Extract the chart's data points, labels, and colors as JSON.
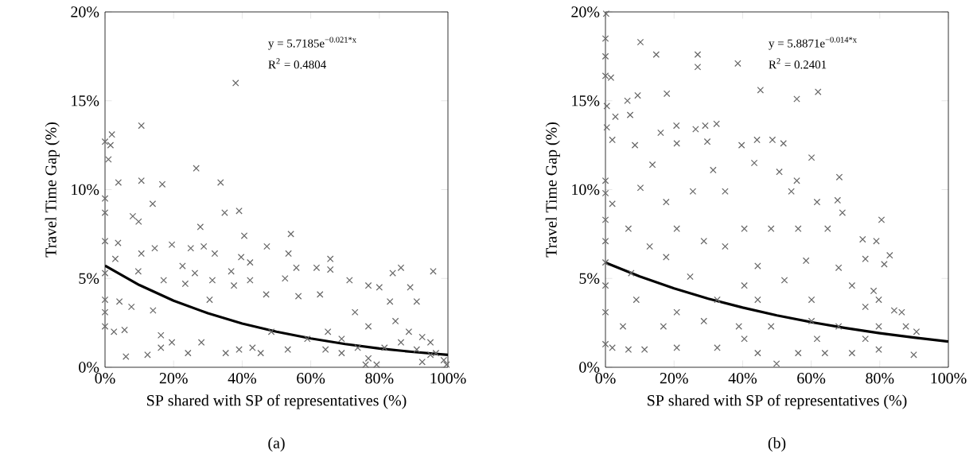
{
  "chart_data": [
    {
      "type": "scatter",
      "subtitle": "(a)",
      "xlabel": "SP shared with SP of representatives (%)",
      "ylabel": "Travel Time Gap (%)",
      "xlim": [
        0,
        100
      ],
      "ylim": [
        0,
        20
      ],
      "xticks": [
        {
          "value": 0,
          "label": "0%"
        },
        {
          "value": 20,
          "label": "20%"
        },
        {
          "value": 40,
          "label": "40%"
        },
        {
          "value": 60,
          "label": "60%"
        },
        {
          "value": 80,
          "label": "80%"
        },
        {
          "value": 100,
          "label": "100%"
        }
      ],
      "yticks": [
        {
          "value": 0,
          "label": "0%"
        },
        {
          "value": 5,
          "label": "5%"
        },
        {
          "value": 10,
          "label": "10%"
        },
        {
          "value": 15,
          "label": "15%"
        },
        {
          "value": 20,
          "label": "20%"
        }
      ],
      "annotations": [
        "y = 5.7185e$^{−0.021*x}$",
        "R$^{2}$ = 0.4804"
      ],
      "series": [
        {
          "type": "scatter",
          "color": "#666666",
          "marker": "cross",
          "x": [
            38.1,
            10.6,
            2.0,
            1.6,
            0,
            1.0,
            26.6,
            10.6,
            33.7,
            3.9,
            16.7,
            13.9,
            0,
            0,
            34.9,
            39.1,
            8.1,
            9.8,
            27.8,
            54.2,
            40.6,
            3.8,
            0,
            47.2,
            14.5,
            19.5,
            25.0,
            28.8,
            53.5,
            65.7,
            10.6,
            39.7,
            32.0,
            55.8,
            61.7,
            65.7,
            86.3,
            95.7,
            83.9,
            3.0,
            0,
            9.7,
            22.6,
            36.8,
            26.2,
            42.3,
            0,
            0,
            0,
            2.6,
            5.7,
            6.1,
            12.4,
            16.3,
            16.3,
            19.5,
            4.2,
            7.7,
            14.0,
            17.1,
            23.4,
            31.3,
            30.5,
            37.6,
            42.3,
            47.0,
            52.5,
            56.4,
            62.7,
            24.2,
            28.1,
            35.2,
            39.1,
            43.0,
            45.4,
            48.5,
            53.3,
            59.0,
            64.3,
            69.0,
            71.3,
            76.8,
            80.0,
            89.0,
            83.1,
            90.9,
            72.9,
            76.8,
            84.7,
            88.6,
            92.5,
            94.9,
            96.5,
            69.0,
            76.8,
            76.0,
            79.2,
            92.5,
            98.8,
            99.6,
            65.0,
            73.7,
            81.5,
            86.3,
            90.9,
            94.9
          ],
          "values": [
            16.0,
            13.6,
            13.1,
            12.5,
            12.7,
            11.7,
            11.2,
            10.5,
            10.4,
            10.4,
            10.3,
            9.2,
            9.5,
            8.7,
            8.7,
            8.8,
            8.5,
            8.2,
            7.9,
            7.5,
            7.4,
            7.0,
            7.1,
            6.8,
            6.7,
            6.9,
            6.7,
            6.8,
            6.4,
            6.1,
            6.4,
            6.2,
            6.4,
            5.6,
            5.6,
            5.5,
            5.6,
            5.4,
            5.3,
            6.1,
            5.3,
            5.4,
            5.7,
            5.4,
            5.3,
            5.9,
            3.8,
            3.1,
            2.3,
            2.0,
            2.1,
            0.6,
            0.7,
            1.1,
            1.8,
            1.4,
            3.7,
            3.4,
            3.2,
            4.9,
            4.7,
            4.9,
            3.8,
            4.6,
            4.9,
            4.1,
            5.0,
            4.0,
            4.1,
            0.8,
            1.4,
            0.8,
            1.0,
            1.1,
            0.8,
            2.0,
            1.0,
            1.6,
            1.0,
            1.6,
            4.9,
            4.6,
            4.5,
            4.5,
            3.7,
            3.7,
            3.1,
            2.3,
            2.6,
            2.0,
            1.7,
            1.4,
            0.8,
            0.8,
            0.5,
            0.15,
            0.15,
            0.3,
            0.4,
            0.15,
            2.0,
            1.1,
            1.1,
            1.4,
            1.0,
            0.7
          ]
        },
        {
          "type": "line",
          "color": "#000000",
          "marker": "none",
          "line_style": "solid",
          "x": [
            0,
            10,
            20,
            30,
            40,
            50,
            60,
            70,
            80,
            90,
            100
          ],
          "values": [
            5.72,
            4.63,
            3.75,
            3.04,
            2.46,
            2.0,
            1.62,
            1.31,
            1.06,
            0.86,
            0.7
          ]
        }
      ]
    },
    {
      "type": "scatter",
      "subtitle": "(b)",
      "xlabel": "SP shared with SP of representatives (%)",
      "ylabel": "Travel Time Gap (%)",
      "xlim": [
        0,
        100
      ],
      "ylim": [
        0,
        20
      ],
      "xticks": [
        {
          "value": 0,
          "label": "0%"
        },
        {
          "value": 20,
          "label": "20%"
        },
        {
          "value": 40,
          "label": "40%"
        },
        {
          "value": 60,
          "label": "60%"
        },
        {
          "value": 80,
          "label": "80%"
        },
        {
          "value": 100,
          "label": "100%"
        }
      ],
      "yticks": [
        {
          "value": 0,
          "label": "0%"
        },
        {
          "value": 5,
          "label": "5%"
        },
        {
          "value": 10,
          "label": "10%"
        },
        {
          "value": 15,
          "label": "15%"
        },
        {
          "value": 20,
          "label": "20%"
        }
      ],
      "annotations": [
        "y = 5.8871e$^{−0.014*x}$",
        "R$^{2}$ = 0.2401"
      ],
      "series": [
        {
          "type": "scatter",
          "color": "#666666",
          "marker": "cross",
          "x": [
            0.2,
            0,
            10.2,
            0,
            14.8,
            26.9,
            26.9,
            38.6,
            0,
            1.6,
            45.2,
            62.0,
            55.8,
            17.9,
            9.4,
            6.4,
            0.4,
            2.9,
            7.2,
            0.4,
            20.7,
            26.3,
            29.1,
            32.4,
            16.1,
            44.2,
            48.7,
            51.9,
            39.7,
            29.7,
            20.8,
            8.6,
            2.0,
            60.1,
            43.4,
            13.7,
            31.4,
            50.7,
            68.2,
            55.8,
            0,
            0,
            10.2,
            25.5,
            34.9,
            54.2,
            67.7,
            61.7,
            17.7,
            2.0,
            69.1,
            80.5,
            0,
            0,
            0,
            0,
            0,
            0,
            6.7,
            20.8,
            40.5,
            48.3,
            56.2,
            64.8,
            79.0,
            82.9,
            75.0,
            75.8,
            81.3,
            12.9,
            28.7,
            34.9,
            44.4,
            17.7,
            58.5,
            68.0,
            7.5,
            24.7,
            40.5,
            52.2,
            71.9,
            78.2,
            79.7,
            9.0,
            20.8,
            32.6,
            44.4,
            60.1,
            75.8,
            84.2,
            86.4,
            90.7,
            87.6,
            5.1,
            16.9,
            28.7,
            38.9,
            48.3,
            60.1,
            68.0,
            79.7,
            2.0,
            6.7,
            11.4,
            20.8,
            32.6,
            44.4,
            49.9,
            56.2,
            64.0,
            71.9,
            79.7,
            89.9,
            40.5,
            61.7,
            75.8
          ],
          "values": [
            19.9,
            18.5,
            18.3,
            17.5,
            17.6,
            17.6,
            16.9,
            17.1,
            16.4,
            16.3,
            15.6,
            15.5,
            15.1,
            15.4,
            15.3,
            15.0,
            14.7,
            14.1,
            14.2,
            13.5,
            13.6,
            13.4,
            13.6,
            13.7,
            13.2,
            12.8,
            12.8,
            12.6,
            12.5,
            12.7,
            12.6,
            12.5,
            12.8,
            11.8,
            11.5,
            11.4,
            11.1,
            11.0,
            10.7,
            10.5,
            10.5,
            9.8,
            10.1,
            9.9,
            9.9,
            9.9,
            9.4,
            9.3,
            9.3,
            9.2,
            8.7,
            8.3,
            8.3,
            7.1,
            5.9,
            4.6,
            3.1,
            1.3,
            7.8,
            7.8,
            7.8,
            7.8,
            7.8,
            7.8,
            7.1,
            6.3,
            7.2,
            6.1,
            5.8,
            6.8,
            7.1,
            6.8,
            5.7,
            6.2,
            6.0,
            5.6,
            5.3,
            5.1,
            4.6,
            4.9,
            4.6,
            4.3,
            3.8,
            3.8,
            3.1,
            3.8,
            3.8,
            3.8,
            3.4,
            3.2,
            3.1,
            2.0,
            2.3,
            2.3,
            2.3,
            2.6,
            2.3,
            2.3,
            2.6,
            2.3,
            2.3,
            1.1,
            1.0,
            1.0,
            1.1,
            1.1,
            0.8,
            0.2,
            0.8,
            0.8,
            0.8,
            1.0,
            0.7,
            1.6,
            1.6,
            1.6
          ]
        },
        {
          "type": "line",
          "color": "#000000",
          "marker": "none",
          "line_style": "solid",
          "x": [
            0,
            10,
            20,
            30,
            40,
            50,
            60,
            70,
            80,
            90,
            100
          ],
          "values": [
            5.89,
            5.11,
            4.44,
            3.86,
            3.36,
            2.92,
            2.54,
            2.21,
            1.92,
            1.67,
            1.45
          ]
        }
      ]
    }
  ]
}
